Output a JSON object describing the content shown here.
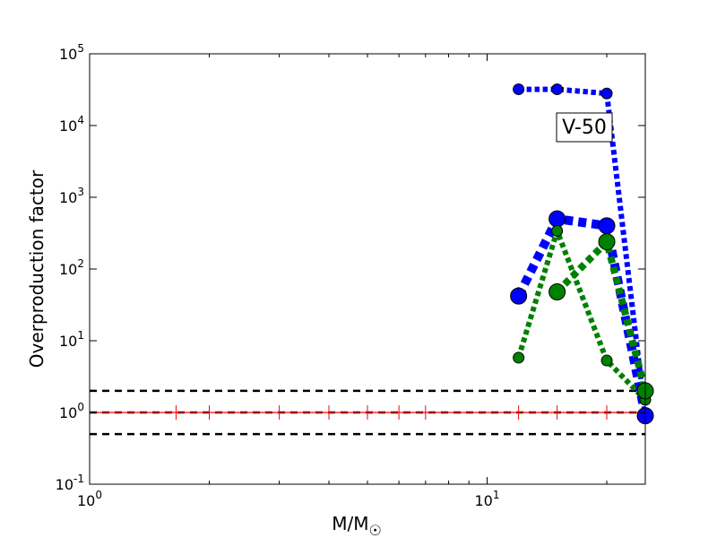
{
  "chart_data": {
    "type": "line",
    "title": "",
    "xlabel": "M/M",
    "ylabel": "Overproduction factor",
    "xscale": "log",
    "yscale": "log",
    "xlim": [
      1,
      25
    ],
    "ylim": [
      0.1,
      100000
    ],
    "x_tick_labels": [
      {
        "value": 1,
        "base": "10",
        "exp": "0"
      },
      {
        "value": 10,
        "base": "10",
        "exp": "1"
      }
    ],
    "y_tick_labels": [
      {
        "value": 0.1,
        "base": "10",
        "exp": "-1"
      },
      {
        "value": 1,
        "base": "10",
        "exp": "0"
      },
      {
        "value": 10,
        "base": "10",
        "exp": "1"
      },
      {
        "value": 100,
        "base": "10",
        "exp": "2"
      },
      {
        "value": 1000,
        "base": "10",
        "exp": "3"
      },
      {
        "value": 10000,
        "base": "10",
        "exp": "4"
      },
      {
        "value": 100000,
        "base": "10",
        "exp": "5"
      }
    ],
    "annotation": "V-50",
    "reference_lines": [
      {
        "y": 2,
        "style": "dashed",
        "color": "#000000"
      },
      {
        "y": 1,
        "style": "dashed",
        "color": "#000000"
      },
      {
        "y": 0.5,
        "style": "dashed",
        "color": "#000000"
      }
    ],
    "reference_solar_line": {
      "y": 1,
      "color": "#ff0000",
      "tick_x": [
        1.65,
        2.0,
        3.0,
        4.0,
        5.0,
        6.0,
        7.0,
        12.0,
        15.0,
        20.0,
        25.0
      ]
    },
    "series": [
      {
        "color": "#0000ff",
        "style": "dotted",
        "width": 6,
        "marker_r": 6,
        "x": [
          12,
          15,
          20,
          25
        ],
        "y": [
          32000,
          32000,
          28000,
          0.9
        ]
      },
      {
        "color": "#0000ff",
        "style": "dotted",
        "width": 10,
        "marker_r": 9,
        "x": [
          12,
          15,
          20,
          25
        ],
        "y": [
          42,
          500,
          400,
          0.9
        ]
      },
      {
        "color": "#008000",
        "style": "dotted",
        "width": 6,
        "marker_r": 6,
        "x": [
          12,
          15,
          20,
          25
        ],
        "y": [
          5.8,
          340,
          5.3,
          1.5
        ]
      },
      {
        "color": "#008000",
        "style": "dotted",
        "width": 8,
        "marker_r": 9,
        "x": [
          15,
          20,
          25
        ],
        "y": [
          48,
          240,
          2.0
        ]
      }
    ]
  }
}
